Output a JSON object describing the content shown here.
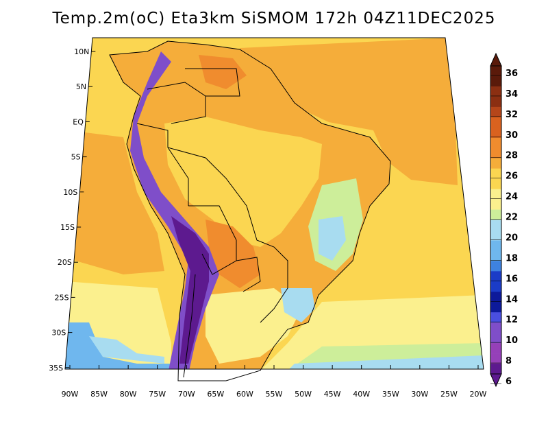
{
  "title": "Temp.2m(oC) Eta3km SiSMOM 172h 04Z11DEC2025",
  "variable": "Temperature at 2 m",
  "units": "oC",
  "lat_labels": [
    "10N",
    "5N",
    "EQ",
    "5S",
    "10S",
    "15S",
    "20S",
    "25S",
    "30S",
    "35S"
  ],
  "lat_values": [
    10,
    5,
    0,
    -5,
    -10,
    -15,
    -20,
    -25,
    -30,
    -35
  ],
  "lon_labels": [
    "90W",
    "85W",
    "80W",
    "75W",
    "70W",
    "65W",
    "60W",
    "55W",
    "50W",
    "45W",
    "40W",
    "35W",
    "30W",
    "25W",
    "20W"
  ],
  "lon_values": [
    -90,
    -85,
    -80,
    -75,
    -70,
    -65,
    -60,
    -55,
    -50,
    -45,
    -40,
    -35,
    -30,
    -25,
    -20
  ],
  "colorbar": {
    "labels": [
      "36",
      "34",
      "32",
      "30",
      "28",
      "26",
      "24",
      "22",
      "20",
      "18",
      "16",
      "14",
      "12",
      "10",
      "8",
      "6"
    ],
    "colors": [
      "#5a1a0a",
      "#8b2f12",
      "#b5461a",
      "#d9621f",
      "#f08c2e",
      "#f5ad3a",
      "#fbd651",
      "#fbf08e",
      "#cdee9a",
      "#a8dcf0",
      "#6fb7ee",
      "#3e82e0",
      "#1b3cc7",
      "#0d1a9a",
      "#4a4fe0",
      "#7f4ec9",
      "#9540b8",
      "#5d1a8f"
    ],
    "top_color": "#5a1a0a",
    "bottom_color": "#5d1a8f"
  },
  "colors": {
    "ocean_warm": "#f5ad3a",
    "ocean_mild": "#fbd651",
    "ocean_cool": "#fbf08e",
    "land_hot": "#f08c2e",
    "land_warm": "#fbd651",
    "land_mild": "#cdee9a",
    "land_cool": "#a8dcf0",
    "andes_cold": "#7f4ec9",
    "andes_coldest": "#5d1a8f",
    "south_cool": "#6fb7ee",
    "border": "#000000"
  }
}
